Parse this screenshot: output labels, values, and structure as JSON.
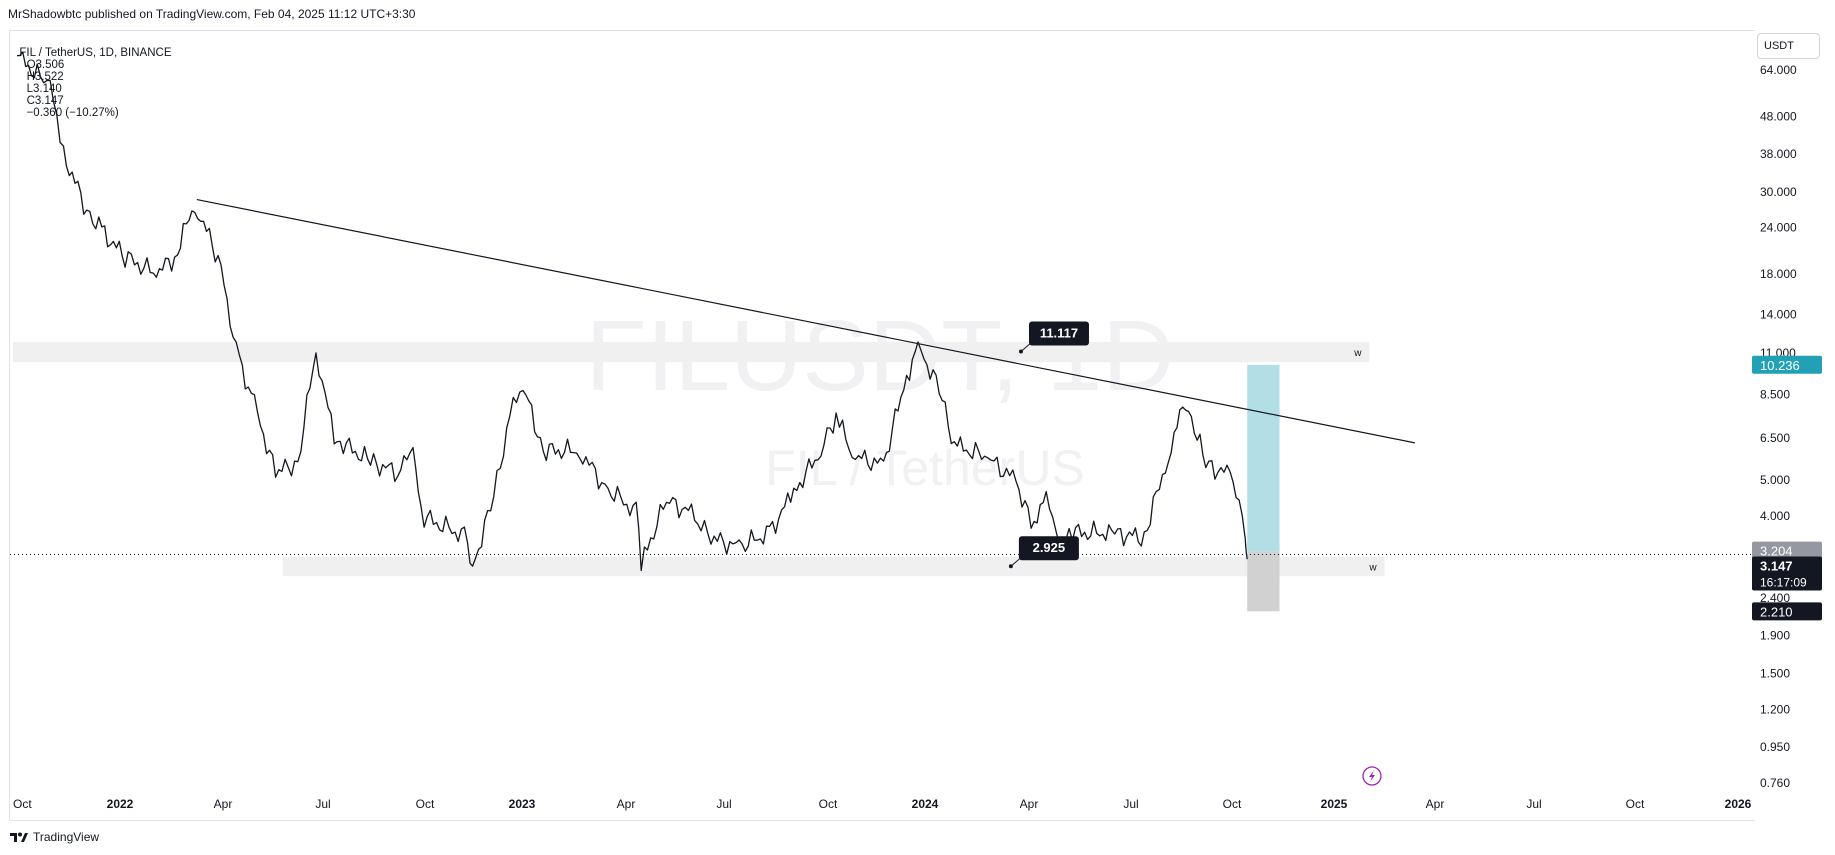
{
  "credit": "MrShadowbtc published on TradingView.com, Feb 04, 2025 11:12 UTC+3:30",
  "symbol": {
    "pair": "FIL / TetherUS, 1D, BINANCE",
    "open": "O3.506",
    "high": "H3.522",
    "low": "L3.140",
    "close": "C3.147",
    "change": "−0.360 (−10.27%)"
  },
  "currency": "USDT",
  "watermark": {
    "main": "FILUSDT, 1D",
    "sub": "FIL / TetherUS"
  },
  "footer_logo": "TradingView",
  "colors": {
    "line": "#131722",
    "zone": "#f0f0f0",
    "target": "#b2dfe6",
    "stop": "#d1d1d1",
    "target_tag": "#22a1b6",
    "dark_tag": "#131722",
    "grey_tag": "#9598a1",
    "icon": "#9c27b0"
  },
  "chart_data": {
    "type": "candlestick",
    "scale": "log",
    "y_ticks": [
      "64.000",
      "48.000",
      "38.000",
      "30.000",
      "24.000",
      "18.000",
      "14.000",
      "11.000",
      "8.500",
      "6.500",
      "5.000",
      "4.000",
      "2.400",
      "1.900",
      "1.500",
      "1.200",
      "0.950",
      "0.760"
    ],
    "x_ticks": [
      "Oct",
      "2022",
      "Apr",
      "Jul",
      "Oct",
      "2023",
      "Apr",
      "Jul",
      "Oct",
      "2024",
      "Apr",
      "Jul",
      "Oct",
      "2025",
      "Apr",
      "Jul",
      "Oct",
      "2026"
    ],
    "bold_x_ticks": [
      "2022",
      "2023",
      "2024",
      "2025",
      "2026"
    ],
    "price_path": [
      [
        "2021-10-05",
        70
      ],
      [
        "2021-10-25",
        62
      ],
      [
        "2021-11-10",
        56
      ],
      [
        "2021-11-20",
        38
      ],
      [
        "2021-12-10",
        28
      ],
      [
        "2021-12-25",
        24
      ],
      [
        "2022-01-20",
        20
      ],
      [
        "2022-02-20",
        18
      ],
      [
        "2022-03-10",
        20
      ],
      [
        "2022-03-30",
        28
      ],
      [
        "2022-04-25",
        19
      ],
      [
        "2022-05-10",
        11
      ],
      [
        "2022-05-25",
        8.5
      ],
      [
        "2022-06-18",
        5.2
      ],
      [
        "2022-07-10",
        5.6
      ],
      [
        "2022-07-28",
        11.2
      ],
      [
        "2022-08-15",
        6.5
      ],
      [
        "2022-09-20",
        5.6
      ],
      [
        "2022-10-20",
        5.2
      ],
      [
        "2022-11-01",
        6.2
      ],
      [
        "2022-11-09",
        4.0
      ],
      [
        "2022-12-25",
        3.5
      ],
      [
        "2022-12-30",
        2.9
      ],
      [
        "2023-01-20",
        4.5
      ],
      [
        "2023-02-05",
        7.5
      ],
      [
        "2023-02-18",
        9.0
      ],
      [
        "2023-03-10",
        6.0
      ],
      [
        "2023-04-15",
        6.0
      ],
      [
        "2023-05-10",
        4.8
      ],
      [
        "2023-06-10",
        4.1
      ],
      [
        "2023-06-15",
        3.0
      ],
      [
        "2023-07-10",
        4.4
      ],
      [
        "2023-08-10",
        4.0
      ],
      [
        "2023-08-20",
        3.5
      ],
      [
        "2023-09-20",
        3.3
      ],
      [
        "2023-10-20",
        3.6
      ],
      [
        "2023-11-10",
        4.5
      ],
      [
        "2023-12-10",
        6.0
      ],
      [
        "2023-12-25",
        7.5
      ],
      [
        "2024-01-10",
        5.8
      ],
      [
        "2024-02-10",
        5.5
      ],
      [
        "2024-03-01",
        9.0
      ],
      [
        "2024-03-15",
        11.6
      ],
      [
        "2024-04-05",
        8.8
      ],
      [
        "2024-04-20",
        6.2
      ],
      [
        "2024-05-20",
        5.8
      ],
      [
        "2024-06-20",
        5.0
      ],
      [
        "2024-07-05",
        3.8
      ],
      [
        "2024-07-20",
        4.5
      ],
      [
        "2024-08-05",
        3.3
      ],
      [
        "2024-08-15",
        3.6
      ],
      [
        "2024-09-20",
        3.6
      ],
      [
        "2024-10-25",
        3.5
      ],
      [
        "2024-11-15",
        5.5
      ],
      [
        "2024-12-05",
        8.3
      ],
      [
        "2024-12-25",
        5.5
      ],
      [
        "2025-01-15",
        5.2
      ],
      [
        "2025-01-27",
        4.4
      ],
      [
        "2025-02-02",
        3.5
      ],
      [
        "2025-02-04",
        3.147
      ]
    ],
    "trendline": {
      "from": [
        "2022-04-01",
        28.6
      ],
      "through": [
        "2024-12-05",
        8.3
      ],
      "to": [
        "2025-07-20",
        6.3
      ]
    },
    "zones": [
      {
        "from": "2021-10-01",
        "to": "2025-06-05",
        "top": 11.8,
        "bottom": 10.4,
        "label": "w"
      },
      {
        "from": "2022-06-25",
        "to": "2025-06-20",
        "top": 3.1,
        "bottom": 2.75,
        "label": "w"
      }
    ],
    "position": {
      "from": "2025-02-04",
      "to": "2025-03-08",
      "entry": 3.204,
      "target": 10.236,
      "stop": 2.21
    },
    "callouts": [
      {
        "value": "11.117",
        "date": "2024-06-25",
        "price": 11.117
      },
      {
        "value": "2.925",
        "date": "2024-06-15",
        "price": 2.925
      }
    ],
    "price_tags": {
      "target": "10.236",
      "entry": "3.204",
      "last": "3.147",
      "countdown": "16:17:09",
      "stop": "2.210"
    }
  }
}
